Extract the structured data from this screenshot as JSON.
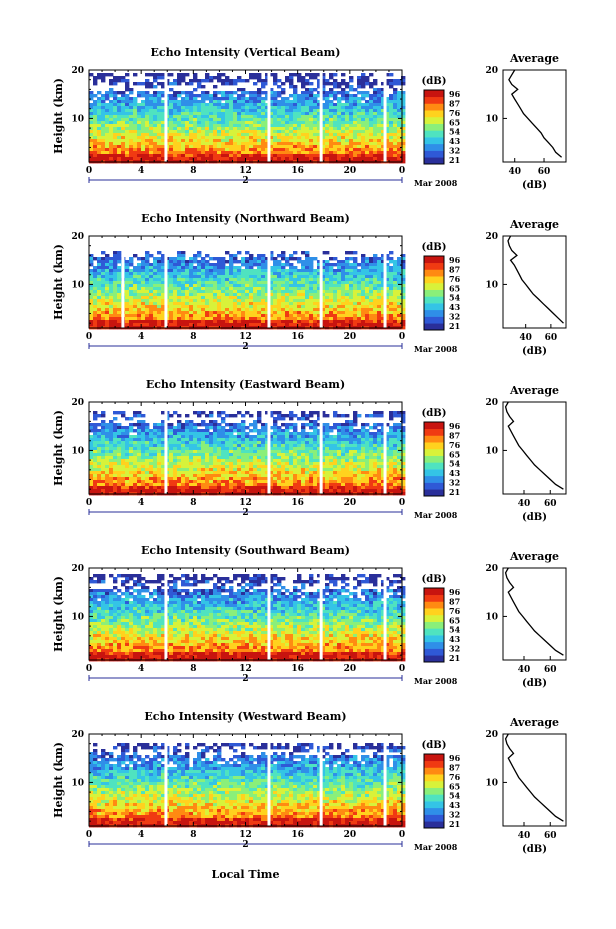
{
  "figure": {
    "x_axis_label": "Local Time",
    "date_label": "Mar 2008",
    "day_label": "2",
    "colorbar_unit": "(dB)",
    "colorbar_ticks": [
      "96",
      "87",
      "76",
      "65",
      "54",
      "43",
      "32",
      "21"
    ],
    "avg_title": "Average",
    "avg_xlabel": "(dB)",
    "y_axis_label": "Height (km)"
  },
  "colors": {
    "scale": [
      "#2a2f9a",
      "#2f59d6",
      "#2f8fe8",
      "#34c4e6",
      "#4fe3c0",
      "#8aef7a",
      "#d8f23a",
      "#ffd21e",
      "#ff8a12",
      "#f03a12",
      "#c8140f"
    ],
    "data_gap": "#ffffff"
  },
  "chart_data": [
    {
      "type": "heatmap",
      "title": "Echo Intensity (Vertical Beam)",
      "ylabel": "Height (km)",
      "x_ticks": [
        "0",
        "4",
        "8",
        "12",
        "16",
        "20",
        "0"
      ],
      "y_ticks": [
        "20",
        "10"
      ],
      "xlim": [
        0,
        24
      ],
      "ylim": [
        1,
        20
      ],
      "color_unit": "dB",
      "color_range": [
        21,
        96
      ],
      "gaps_hours": [
        5.9,
        13.8,
        17.8,
        22.7
      ],
      "data_top_km": 19.8,
      "avg_profile": {
        "type": "line",
        "title": "Average",
        "xlabel": "(dB)",
        "x_ticks": [
          "40",
          "60"
        ],
        "y_ticks": [
          "20",
          "10"
        ],
        "xlim": [
          32,
          75
        ],
        "height_km": [
          2,
          3,
          4,
          5,
          6,
          7,
          8,
          9,
          10,
          11,
          12,
          13,
          14,
          15,
          16,
          17,
          18,
          19,
          20
        ],
        "db": [
          72,
          68,
          66,
          63,
          60,
          58,
          55,
          52,
          49,
          46,
          44,
          42,
          40,
          38,
          42,
          38,
          36,
          38,
          40
        ]
      }
    },
    {
      "type": "heatmap",
      "title": "Echo Intensity (Northward Beam)",
      "ylabel": "Height (km)",
      "x_ticks": [
        "0",
        "4",
        "8",
        "12",
        "16",
        "20",
        "0"
      ],
      "y_ticks": [
        "20",
        "10"
      ],
      "xlim": [
        0,
        24
      ],
      "ylim": [
        1,
        20
      ],
      "color_unit": "dB",
      "color_range": [
        21,
        96
      ],
      "gaps_hours": [
        2.6,
        5.9,
        13.8,
        17.8,
        22.7
      ],
      "data_top_km": 17.5,
      "avg_profile": {
        "type": "line",
        "title": "Average",
        "xlabel": "(dB)",
        "x_ticks": [
          "40",
          "60"
        ],
        "y_ticks": [
          "20",
          "10"
        ],
        "xlim": [
          22,
          72
        ],
        "height_km": [
          2,
          3,
          4,
          5,
          6,
          7,
          8,
          9,
          10,
          11,
          12,
          13,
          14,
          15,
          16,
          17,
          18,
          19,
          20
        ],
        "db": [
          70,
          66,
          62,
          58,
          54,
          50,
          46,
          43,
          40,
          37,
          35,
          33,
          31,
          28,
          33,
          29,
          27,
          26,
          28
        ]
      }
    },
    {
      "type": "heatmap",
      "title": "Echo Intensity (Eastward Beam)",
      "ylabel": "Height (km)",
      "x_ticks": [
        "0",
        "4",
        "8",
        "12",
        "16",
        "20",
        "0"
      ],
      "y_ticks": [
        "20",
        "10"
      ],
      "xlim": [
        0,
        24
      ],
      "ylim": [
        1,
        20
      ],
      "color_unit": "dB",
      "color_range": [
        21,
        96
      ],
      "gaps_hours": [
        5.9,
        13.8,
        17.8,
        22.7
      ],
      "data_top_km": 18.5,
      "avg_profile": {
        "type": "line",
        "title": "Average",
        "xlabel": "(dB)",
        "x_ticks": [
          "40",
          "60"
        ],
        "y_ticks": [
          "20",
          "10"
        ],
        "xlim": [
          24,
          72
        ],
        "height_km": [
          2,
          3,
          4,
          5,
          6,
          7,
          8,
          9,
          10,
          11,
          12,
          13,
          14,
          15,
          16,
          17,
          18,
          19,
          20
        ],
        "db": [
          70,
          64,
          60,
          56,
          52,
          48,
          45,
          42,
          39,
          36,
          34,
          32,
          30,
          28,
          32,
          29,
          27,
          26,
          28
        ]
      }
    },
    {
      "type": "heatmap",
      "title": "Echo Intensity (Southward Beam)",
      "ylabel": "Height (km)",
      "x_ticks": [
        "0",
        "4",
        "8",
        "12",
        "16",
        "20",
        "0"
      ],
      "y_ticks": [
        "20",
        "10"
      ],
      "xlim": [
        0,
        24
      ],
      "ylim": [
        1,
        20
      ],
      "color_unit": "dB",
      "color_range": [
        21,
        96
      ],
      "gaps_hours": [
        5.9,
        13.8,
        17.8,
        22.7
      ],
      "data_top_km": 18.8,
      "avg_profile": {
        "type": "line",
        "title": "Average",
        "xlabel": "(dB)",
        "x_ticks": [
          "40",
          "60"
        ],
        "y_ticks": [
          "20",
          "10"
        ],
        "xlim": [
          24,
          72
        ],
        "height_km": [
          2,
          3,
          4,
          5,
          6,
          7,
          8,
          9,
          10,
          11,
          12,
          13,
          14,
          15,
          16,
          17,
          18,
          19,
          20
        ],
        "db": [
          70,
          64,
          60,
          56,
          52,
          48,
          45,
          42,
          39,
          36,
          34,
          32,
          30,
          28,
          32,
          29,
          27,
          26,
          28
        ]
      }
    },
    {
      "type": "heatmap",
      "title": "Echo Intensity (Westward Beam)",
      "ylabel": "Height (km)",
      "x_ticks": [
        "0",
        "4",
        "8",
        "12",
        "16",
        "20",
        "0"
      ],
      "y_ticks": [
        "20",
        "10"
      ],
      "xlim": [
        0,
        24
      ],
      "ylim": [
        1,
        20
      ],
      "color_unit": "dB",
      "color_range": [
        21,
        96
      ],
      "gaps_hours": [
        5.9,
        13.8,
        17.8,
        22.7
      ],
      "data_top_km": 18.5,
      "avg_profile": {
        "type": "line",
        "title": "Average",
        "xlabel": "(dB)",
        "x_ticks": [
          "40",
          "60"
        ],
        "y_ticks": [
          "20",
          "10"
        ],
        "xlim": [
          24,
          72
        ],
        "height_km": [
          2,
          3,
          4,
          5,
          6,
          7,
          8,
          9,
          10,
          11,
          12,
          13,
          14,
          15,
          16,
          17,
          18,
          19,
          20
        ],
        "db": [
          70,
          64,
          60,
          56,
          52,
          48,
          45,
          42,
          39,
          36,
          34,
          32,
          30,
          28,
          32,
          29,
          27,
          26,
          28
        ]
      }
    }
  ]
}
